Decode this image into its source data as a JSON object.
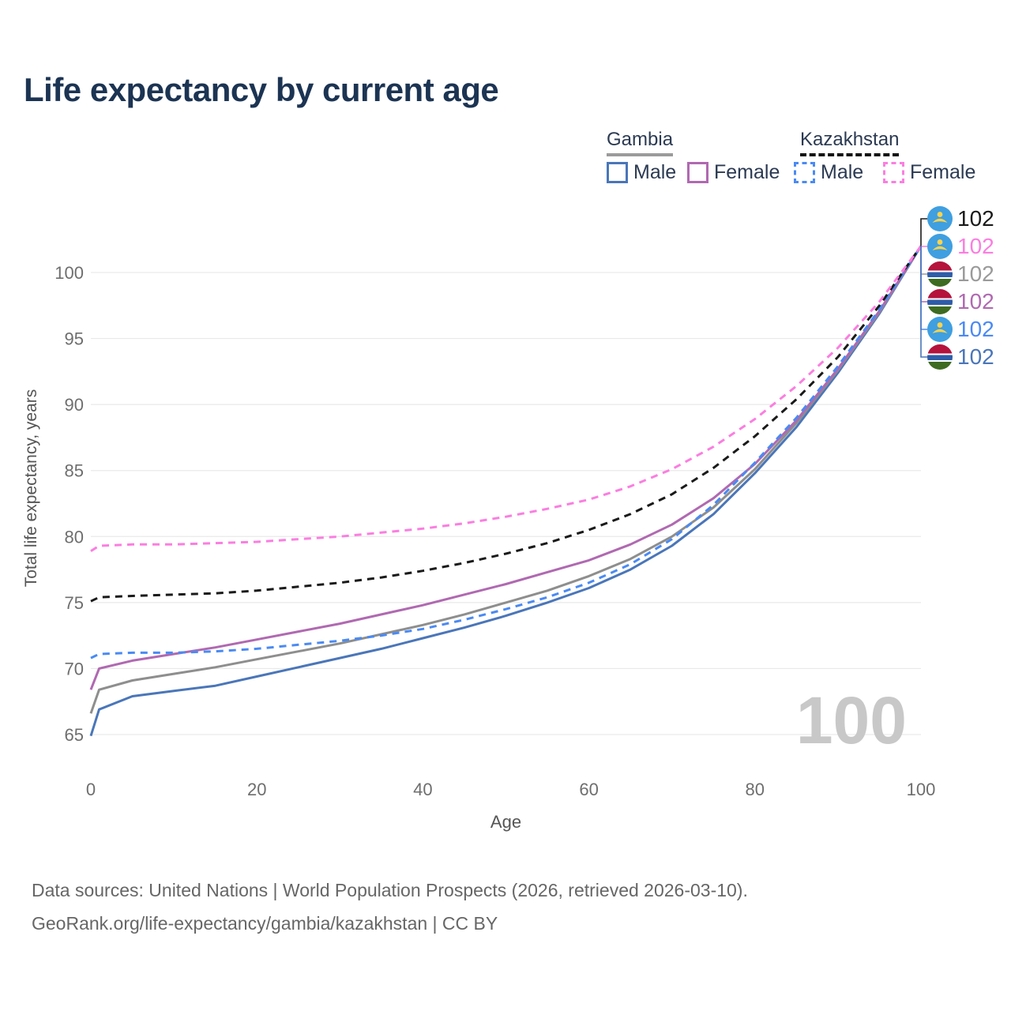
{
  "title": "Life expectancy by current age",
  "legend": {
    "groups": [
      {
        "name": "Gambia",
        "line_style": "solid",
        "underline_color": "#9b9b9b",
        "items": [
          {
            "label": "Male",
            "color": "#4a76b9"
          },
          {
            "label": "Female",
            "color": "#b069b1"
          }
        ]
      },
      {
        "name": "Kazakhstan",
        "line_style": "dashed",
        "underline_color": "#141414",
        "items": [
          {
            "label": "Male",
            "color": "#4a8af4"
          },
          {
            "label": "Female",
            "color": "#fb7ee0"
          }
        ]
      }
    ]
  },
  "chart_data": {
    "type": "line",
    "title": "Life expectancy by current age",
    "xlabel": "Age",
    "ylabel": "Total life expectancy, years",
    "xlim": [
      0,
      100
    ],
    "ylim": [
      63,
      103
    ],
    "xticks": [
      0,
      20,
      40,
      60,
      80,
      100
    ],
    "yticks": [
      65,
      70,
      75,
      80,
      85,
      90,
      95,
      100
    ],
    "grid": "horizontal",
    "legend_position": "top-right",
    "x": [
      0,
      1,
      5,
      10,
      15,
      20,
      25,
      30,
      35,
      40,
      45,
      50,
      55,
      60,
      65,
      70,
      75,
      80,
      85,
      90,
      95,
      100
    ],
    "series": [
      {
        "id": "gambia-male",
        "name": "Gambia Male",
        "country": "gambia",
        "color": "#4a76b9",
        "dashed": false,
        "values": [
          64.9,
          66.9,
          67.9,
          68.3,
          68.7,
          69.4,
          70.1,
          70.8,
          71.5,
          72.3,
          73.1,
          74.0,
          75.0,
          76.1,
          77.5,
          79.3,
          81.7,
          84.8,
          88.3,
          92.4,
          96.9,
          102
        ]
      },
      {
        "id": "gambia-all",
        "name": "Gambia",
        "country": "gambia",
        "color": "#8e8e8e",
        "dashed": false,
        "values": [
          66.6,
          68.4,
          69.1,
          69.6,
          70.1,
          70.7,
          71.3,
          71.9,
          72.6,
          73.3,
          74.1,
          75.0,
          75.9,
          77.0,
          78.3,
          80.0,
          82.2,
          85.1,
          88.6,
          92.6,
          97.0,
          102
        ]
      },
      {
        "id": "gambia-female",
        "name": "Gambia Female",
        "country": "gambia",
        "color": "#b069b1",
        "dashed": false,
        "values": [
          68.4,
          70.0,
          70.6,
          71.1,
          71.6,
          72.2,
          72.8,
          73.4,
          74.1,
          74.8,
          75.6,
          76.4,
          77.3,
          78.2,
          79.4,
          80.9,
          82.9,
          85.5,
          88.8,
          92.7,
          97.1,
          102
        ]
      },
      {
        "id": "kazakhstan-male",
        "name": "Kazakhstan Male",
        "country": "kazakhstan",
        "color": "#4a8af4",
        "dashed": true,
        "values": [
          70.8,
          71.1,
          71.2,
          71.2,
          71.3,
          71.5,
          71.8,
          72.1,
          72.5,
          73.0,
          73.7,
          74.5,
          75.4,
          76.5,
          77.9,
          79.8,
          82.4,
          85.6,
          89.0,
          92.9,
          97.2,
          102
        ]
      },
      {
        "id": "kazakhstan-all",
        "name": "Kazakhstan",
        "country": "kazakhstan",
        "color": "#1a1a1a",
        "dashed": true,
        "values": [
          75.1,
          75.4,
          75.5,
          75.6,
          75.7,
          75.9,
          76.2,
          76.5,
          76.9,
          77.4,
          78.0,
          78.7,
          79.5,
          80.5,
          81.7,
          83.2,
          85.2,
          87.6,
          90.4,
          93.6,
          97.5,
          102
        ]
      },
      {
        "id": "kazakhstan-female",
        "name": "Kazakhstan Female",
        "country": "kazakhstan",
        "color": "#fb7ee0",
        "dashed": true,
        "values": [
          78.9,
          79.3,
          79.4,
          79.4,
          79.5,
          79.6,
          79.8,
          80.0,
          80.3,
          80.6,
          81.0,
          81.5,
          82.1,
          82.8,
          83.8,
          85.1,
          86.8,
          88.9,
          91.4,
          94.3,
          97.8,
          102
        ]
      }
    ],
    "end_labels": [
      {
        "flag": "kazakhstan",
        "value": "102",
        "color": "#1a1a1a"
      },
      {
        "flag": "kazakhstan",
        "value": "102",
        "color": "#fb7ee0"
      },
      {
        "flag": "gambia",
        "value": "102",
        "color": "#9a9a9a"
      },
      {
        "flag": "gambia",
        "value": "102",
        "color": "#b069b1"
      },
      {
        "flag": "kazakhstan",
        "value": "102",
        "color": "#4a8af4"
      },
      {
        "flag": "gambia",
        "value": "102",
        "color": "#4a76b9"
      }
    ],
    "watermark": "100"
  },
  "footer": {
    "line1": "Data sources: United Nations | World Population Prospects (2026, retrieved 2026-03-10).",
    "line2": "GeoRank.org/life-expectancy/gambia/kazakhstan | CC BY"
  },
  "palette": {
    "title_color": "#1c3453",
    "tick_color": "#6e6e6e",
    "axis_label_color": "#555555",
    "grid_color": "#e9e9e9",
    "watermark_color": "#c8c8c8",
    "kazakhstan_flag_blue": "#3f9fe0",
    "kazakhstan_flag_yellow": "#fcd34d",
    "gambia_flag_red": "#b5123c",
    "gambia_flag_blue": "#2e5ca8",
    "gambia_flag_green": "#3d6b21"
  }
}
